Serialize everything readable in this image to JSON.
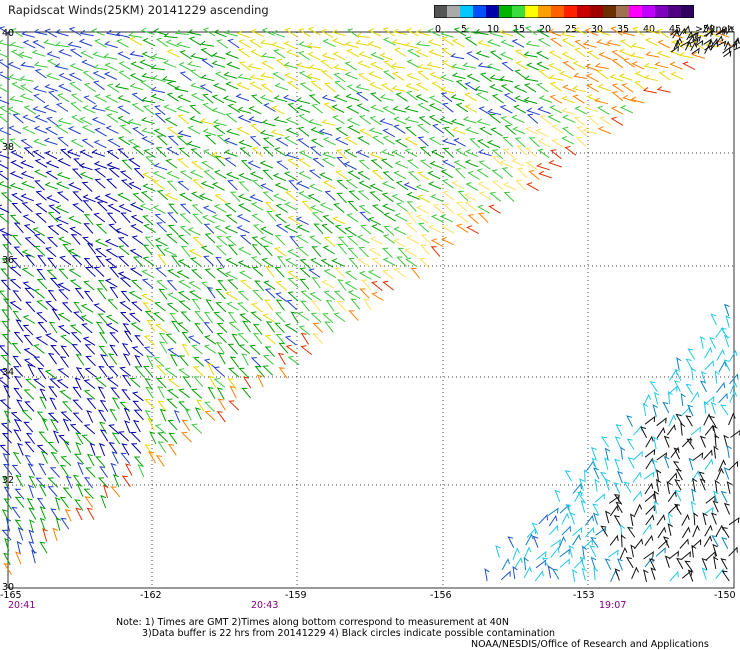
{
  "title": "Rapidscat Winds(25KM) 20141229 ascending",
  "colorbar": {
    "unit_label": "knots",
    "tick_labels": [
      "0",
      "5",
      "10",
      "15",
      "20",
      "25",
      "30",
      "35",
      "40",
      "45",
      ">50"
    ],
    "colors": [
      "#555555",
      "#aaaaaa",
      "#00c8ff",
      "#0050ff",
      "#0000aa",
      "#00b400",
      "#3cdc3c",
      "#ffff00",
      "#ffa000",
      "#ff6000",
      "#ff2000",
      "#c80000",
      "#a00000",
      "#6b3000",
      "#a07050",
      "#ff00ff",
      "#c000ff",
      "#8000c0",
      "#500080",
      "#300060"
    ]
  },
  "map": {
    "lon_labels": [
      "-165",
      "-162",
      "-159",
      "-156",
      "-153",
      "-150"
    ],
    "lat_labels": [
      "40",
      "38",
      "36",
      "34",
      "32",
      "30"
    ],
    "time_labels": [
      "20:41",
      "20:43",
      "19:07"
    ],
    "grid_style": "dotted"
  },
  "notes": {
    "line1": "Note: 1) Times are GMT 2)Times along bottom correspond to measurement at 40N",
    "line2": "3)Data buffer is 22 hrs from 20141229 4) Black circles indicate possible contamination",
    "line3": "NOAA/NESDIS/Office of Research and Applications"
  },
  "swaths": [
    {
      "id": "upper-left",
      "dominant_colors": [
        "#0000aa",
        "#00b400",
        "#3cdc3c",
        "#ffff00",
        "#ff6000"
      ]
    },
    {
      "id": "lower-right",
      "dominant_colors": [
        "#00c8ff",
        "#0050ff",
        "#000000"
      ]
    }
  ]
}
